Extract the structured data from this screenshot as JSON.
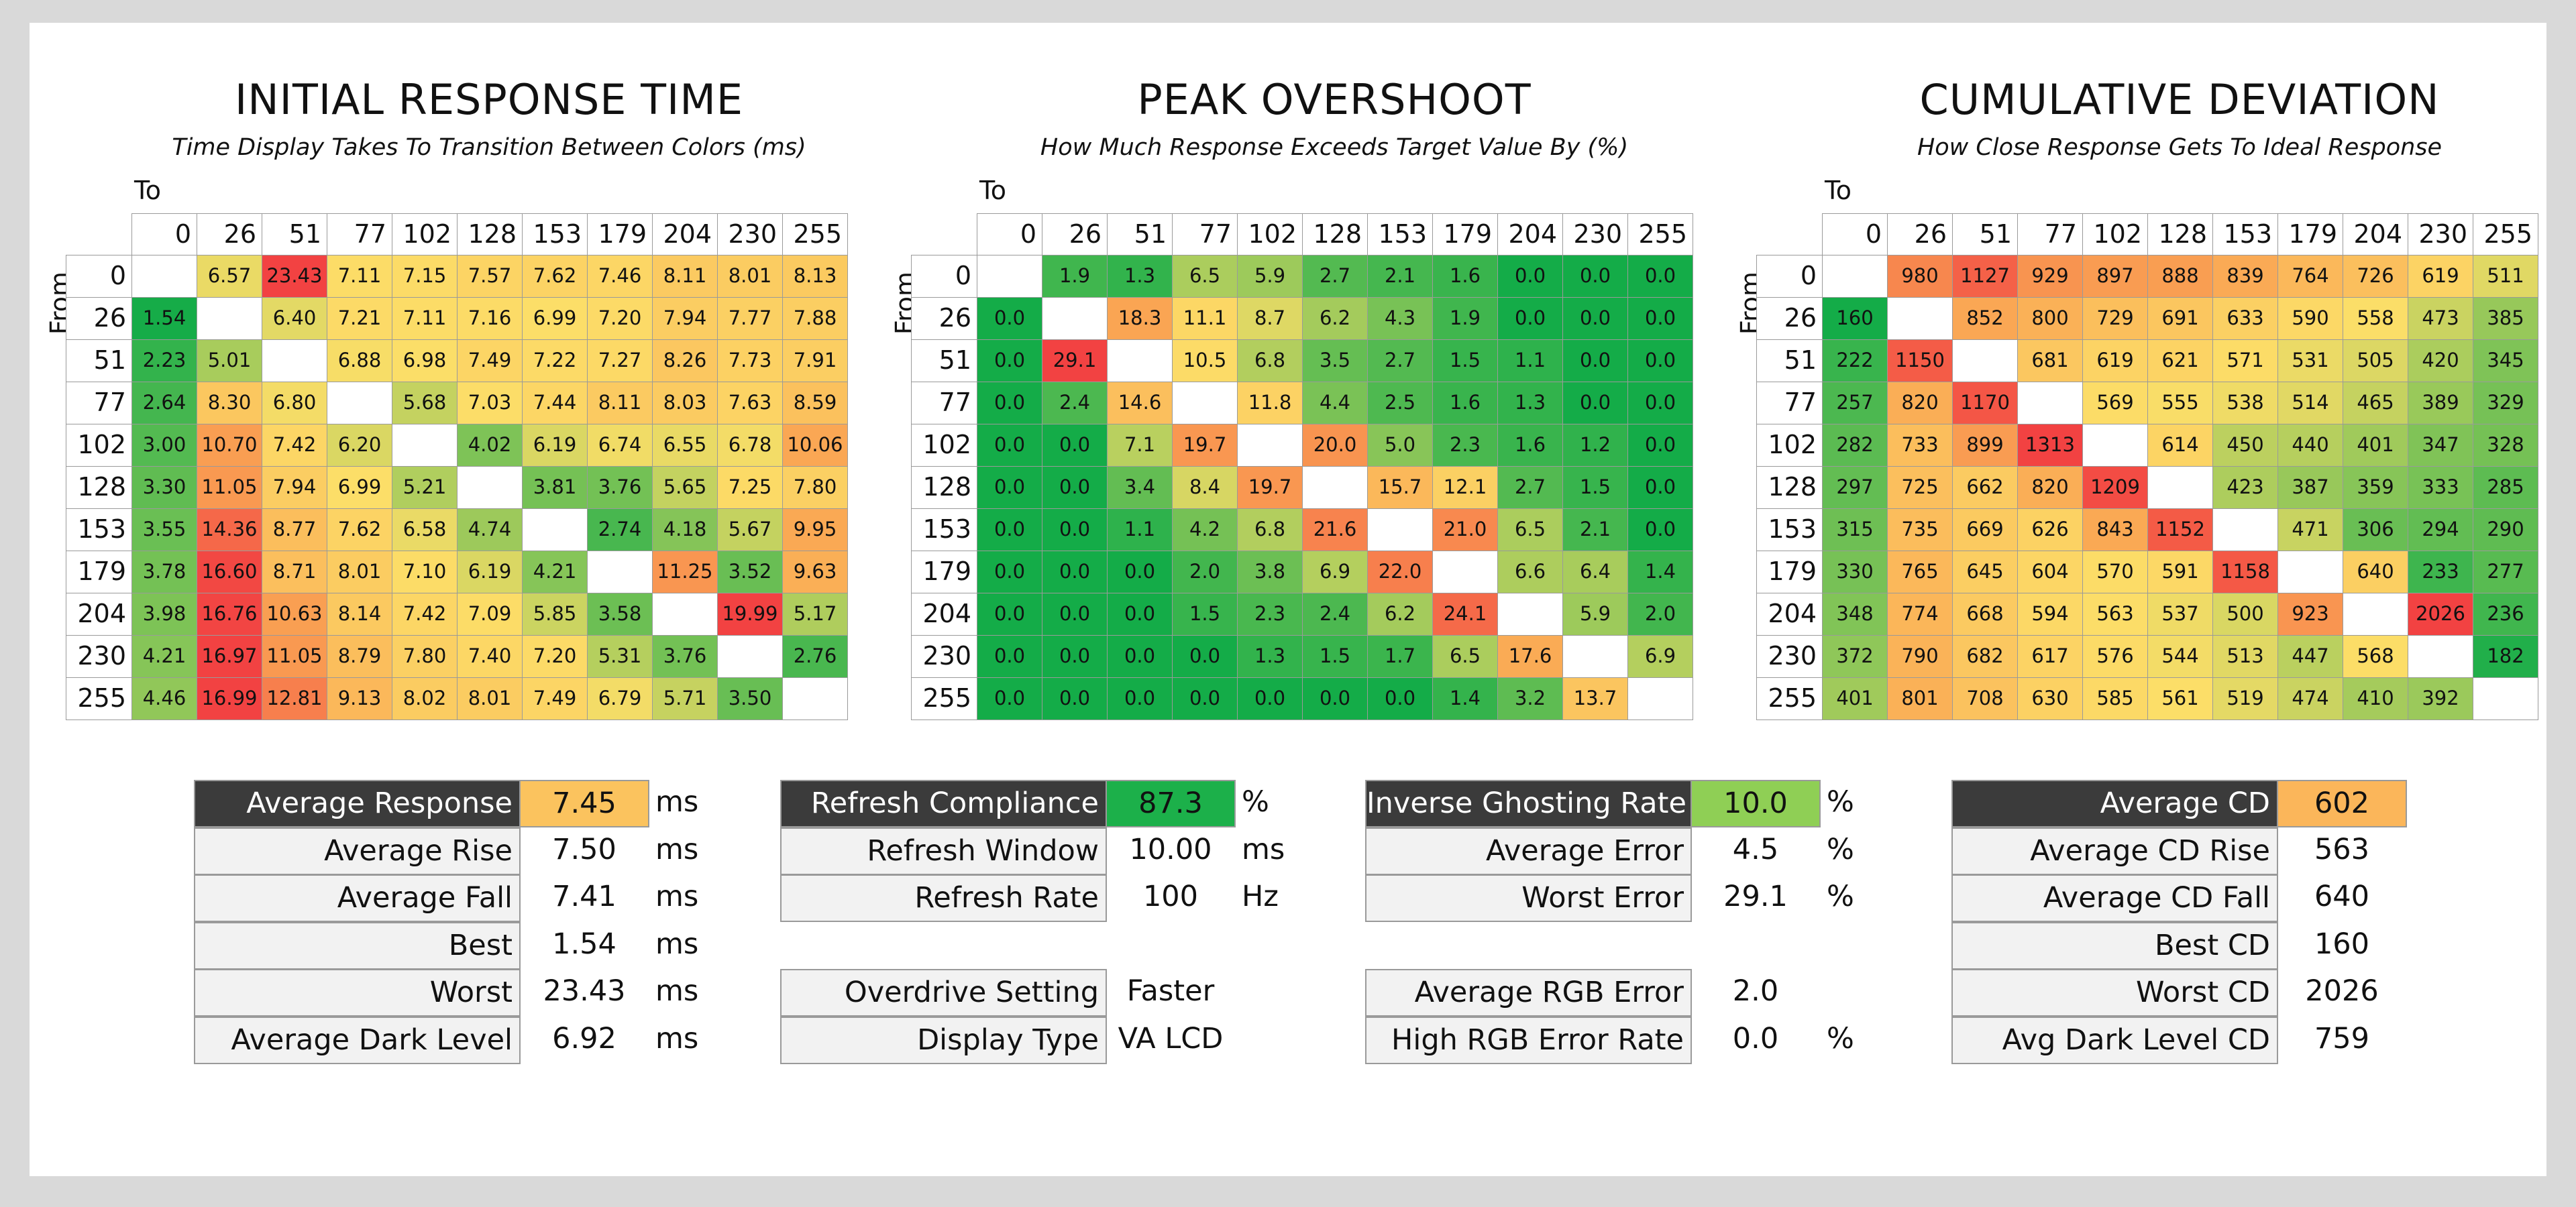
{
  "panels": [
    {
      "title": "INITIAL RESPONSE TIME",
      "subtitle": "Time Display Takes To Transition Between Colors (ms)",
      "to_label": "To",
      "from_label": "From",
      "levels": [
        "0",
        "26",
        "51",
        "77",
        "102",
        "128",
        "153",
        "179",
        "204",
        "230",
        "255"
      ],
      "rows": [
        [
          null,
          "6.57",
          "23.43",
          "7.11",
          "7.15",
          "7.57",
          "7.62",
          "7.46",
          "8.11",
          "8.01",
          "8.13"
        ],
        [
          "1.54",
          null,
          "6.40",
          "7.21",
          "7.11",
          "7.16",
          "6.99",
          "7.20",
          "7.94",
          "7.77",
          "7.88"
        ],
        [
          "2.23",
          "5.01",
          null,
          "6.88",
          "6.98",
          "7.49",
          "7.22",
          "7.27",
          "8.26",
          "7.73",
          "7.91"
        ],
        [
          "2.64",
          "8.30",
          "6.80",
          null,
          "5.68",
          "7.03",
          "7.44",
          "8.11",
          "8.03",
          "7.63",
          "8.59"
        ],
        [
          "3.00",
          "10.70",
          "7.42",
          "6.20",
          null,
          "4.02",
          "6.19",
          "6.74",
          "6.55",
          "6.78",
          "10.06"
        ],
        [
          "3.30",
          "11.05",
          "7.94",
          "6.99",
          "5.21",
          null,
          "3.81",
          "3.76",
          "5.65",
          "7.25",
          "7.80"
        ],
        [
          "3.55",
          "14.36",
          "8.77",
          "7.62",
          "6.58",
          "4.74",
          null,
          "2.74",
          "4.18",
          "5.67",
          "9.95"
        ],
        [
          "3.78",
          "16.60",
          "8.71",
          "8.01",
          "7.10",
          "6.19",
          "4.21",
          null,
          "11.25",
          "3.52",
          "9.63"
        ],
        [
          "3.98",
          "16.76",
          "10.63",
          "8.14",
          "7.42",
          "7.09",
          "5.85",
          "3.58",
          null,
          "19.99",
          "5.17"
        ],
        [
          "4.21",
          "16.97",
          "11.05",
          "8.79",
          "7.80",
          "7.40",
          "7.20",
          "5.31",
          "3.76",
          null,
          "2.76"
        ],
        [
          "4.46",
          "16.99",
          "12.81",
          "9.13",
          "8.02",
          "8.01",
          "7.49",
          "6.79",
          "5.71",
          "3.50",
          null
        ]
      ]
    },
    {
      "title": "PEAK OVERSHOOT",
      "subtitle": "How Much Response Exceeds Target Value By (%)",
      "to_label": "To",
      "from_label": "From",
      "levels": [
        "0",
        "26",
        "51",
        "77",
        "102",
        "128",
        "153",
        "179",
        "204",
        "230",
        "255"
      ],
      "rows": [
        [
          null,
          "1.9",
          "1.3",
          "6.5",
          "5.9",
          "2.7",
          "2.1",
          "1.6",
          "0.0",
          "0.0",
          "0.0"
        ],
        [
          "0.0",
          null,
          "18.3",
          "11.1",
          "8.7",
          "6.2",
          "4.3",
          "1.9",
          "0.0",
          "0.0",
          "0.0"
        ],
        [
          "0.0",
          "29.1",
          null,
          "10.5",
          "6.8",
          "3.5",
          "2.7",
          "1.5",
          "1.1",
          "0.0",
          "0.0"
        ],
        [
          "0.0",
          "2.4",
          "14.6",
          null,
          "11.8",
          "4.4",
          "2.5",
          "1.6",
          "1.3",
          "0.0",
          "0.0"
        ],
        [
          "0.0",
          "0.0",
          "7.1",
          "19.7",
          null,
          "20.0",
          "5.0",
          "2.3",
          "1.6",
          "1.2",
          "0.0"
        ],
        [
          "0.0",
          "0.0",
          "3.4",
          "8.4",
          "19.7",
          null,
          "15.7",
          "12.1",
          "2.7",
          "1.5",
          "0.0"
        ],
        [
          "0.0",
          "0.0",
          "1.1",
          "4.2",
          "6.8",
          "21.6",
          null,
          "21.0",
          "6.5",
          "2.1",
          "0.0"
        ],
        [
          "0.0",
          "0.0",
          "0.0",
          "2.0",
          "3.8",
          "6.9",
          "22.0",
          null,
          "6.6",
          "6.4",
          "1.4"
        ],
        [
          "0.0",
          "0.0",
          "0.0",
          "1.5",
          "2.3",
          "2.4",
          "6.2",
          "24.1",
          null,
          "5.9",
          "2.0"
        ],
        [
          "0.0",
          "0.0",
          "0.0",
          "0.0",
          "1.3",
          "1.5",
          "1.7",
          "6.5",
          "17.6",
          null,
          "6.9"
        ],
        [
          "0.0",
          "0.0",
          "0.0",
          "0.0",
          "0.0",
          "0.0",
          "0.0",
          "1.4",
          "3.2",
          "13.7",
          null
        ]
      ]
    },
    {
      "title": "CUMULATIVE DEVIATION",
      "subtitle": "How Close Response Gets To Ideal Response",
      "to_label": "To",
      "from_label": "From",
      "levels": [
        "0",
        "26",
        "51",
        "77",
        "102",
        "128",
        "153",
        "179",
        "204",
        "230",
        "255"
      ],
      "rows": [
        [
          null,
          "980",
          "1127",
          "929",
          "897",
          "888",
          "839",
          "764",
          "726",
          "619",
          "511"
        ],
        [
          "160",
          null,
          "852",
          "800",
          "729",
          "691",
          "633",
          "590",
          "558",
          "473",
          "385"
        ],
        [
          "222",
          "1150",
          null,
          "681",
          "619",
          "621",
          "571",
          "531",
          "505",
          "420",
          "345"
        ],
        [
          "257",
          "820",
          "1170",
          null,
          "569",
          "555",
          "538",
          "514",
          "465",
          "389",
          "329"
        ],
        [
          "282",
          "733",
          "899",
          "1313",
          null,
          "614",
          "450",
          "440",
          "401",
          "347",
          "328"
        ],
        [
          "297",
          "725",
          "662",
          "820",
          "1209",
          null,
          "423",
          "387",
          "359",
          "333",
          "285"
        ],
        [
          "315",
          "735",
          "669",
          "626",
          "843",
          "1152",
          null,
          "471",
          "306",
          "294",
          "290"
        ],
        [
          "330",
          "765",
          "645",
          "604",
          "570",
          "591",
          "1158",
          null,
          "640",
          "233",
          "277"
        ],
        [
          "348",
          "774",
          "668",
          "594",
          "563",
          "537",
          "500",
          "923",
          null,
          "2026",
          "236"
        ],
        [
          "372",
          "790",
          "682",
          "617",
          "576",
          "544",
          "513",
          "447",
          "568",
          null,
          "182"
        ],
        [
          "401",
          "801",
          "708",
          "630",
          "585",
          "561",
          "519",
          "474",
          "410",
          "392",
          null
        ]
      ]
    }
  ],
  "stats": [
    [
      {
        "label": "Average Response",
        "value": "7.45",
        "unit": "ms"
      },
      {
        "label": "Average Rise",
        "value": "7.50",
        "unit": "ms"
      },
      {
        "label": "Average Fall",
        "value": "7.41",
        "unit": "ms"
      },
      {
        "label": "Best",
        "value": "1.54",
        "unit": "ms"
      },
      {
        "label": "Worst",
        "value": "23.43",
        "unit": "ms"
      },
      {
        "label": "Average Dark Level",
        "value": "6.92",
        "unit": "ms"
      }
    ],
    [
      {
        "label": "Refresh Compliance",
        "value": "87.3",
        "unit": "%"
      },
      {
        "label": "Refresh Window",
        "value": "10.00",
        "unit": "ms"
      },
      {
        "label": "Refresh Rate",
        "value": "100",
        "unit": "Hz"
      },
      null,
      {
        "label": "Overdrive Setting",
        "value": "Faster"
      },
      {
        "label": "Display Type",
        "value": "VA LCD"
      }
    ],
    [
      {
        "label": "Inverse Ghosting Rate",
        "value": "10.0",
        "unit": "%"
      },
      {
        "label": "Average Error",
        "value": "4.5",
        "unit": "%"
      },
      {
        "label": "Worst Error",
        "value": "29.1",
        "unit": "%"
      },
      null,
      {
        "label": "Average RGB Error",
        "value": "2.0"
      },
      {
        "label": "High RGB Error Rate",
        "value": "0.0",
        "unit": "%"
      }
    ],
    [
      {
        "label": "Average CD",
        "value": "602"
      },
      {
        "label": "Average CD Rise",
        "value": "563"
      },
      {
        "label": "Average CD Fall",
        "value": "640"
      },
      {
        "label": "Best CD",
        "value": "160"
      },
      {
        "label": "Worst CD",
        "value": "2026"
      },
      {
        "label": "Avg Dark Level CD",
        "value": "759"
      }
    ]
  ]
}
